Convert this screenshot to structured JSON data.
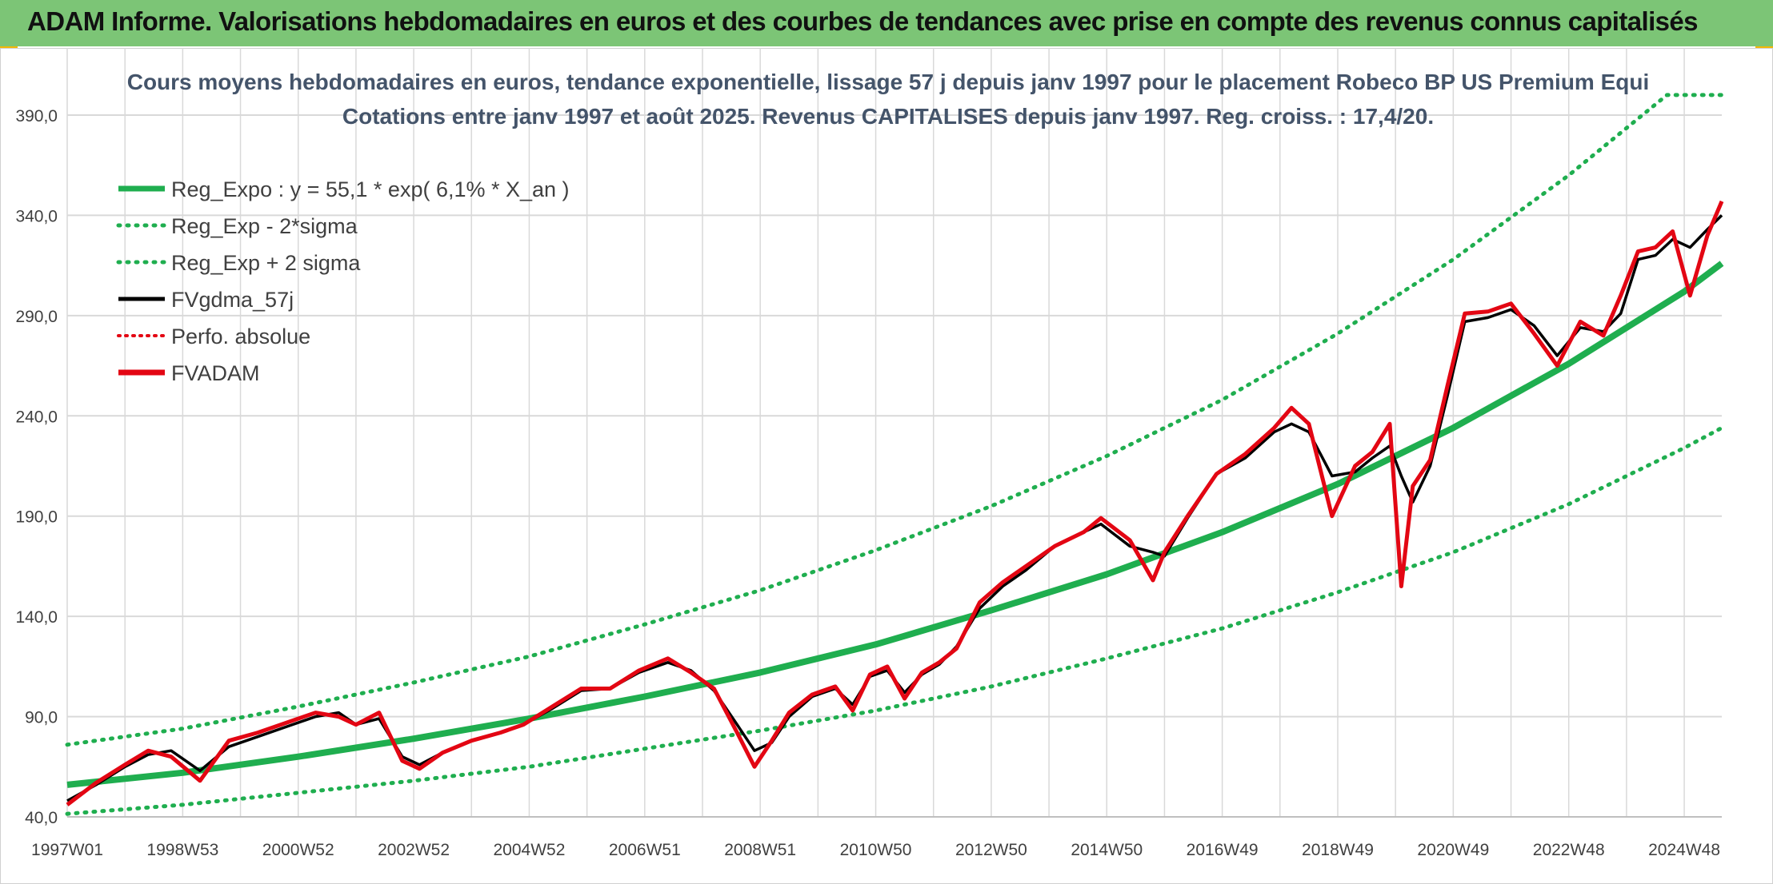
{
  "header": {
    "title": "ADAM Informe. Valorisations hebdomadaires en euros et des courbes de tendances avec prise en compte des revenus connus capitalisés"
  },
  "colors": {
    "banner": "#7cc576",
    "corner_accent": "#f2b705",
    "trend": "#1fae4f",
    "band": "#1fae4f",
    "fvgdma": "#000000",
    "perfo": "#e30613",
    "fvadam": "#e30613",
    "grid": "#d9d9d9",
    "title_text": "#44546a"
  },
  "chart_data": {
    "type": "line",
    "title": "Cours moyens hebdomadaires en euros, tendance exponentielle, lissage 57 j depuis janv 1997 pour le placement Robeco BP US Premium Equi",
    "subtitle": "Cotations entre janv 1997 et août 2025. Revenus CAPITALISES depuis janv 1997. Reg. croiss. : 17,4/20.",
    "xlabel": "",
    "ylabel": "",
    "ylim": [
      40,
      400
    ],
    "yticks": [
      40,
      90,
      140,
      190,
      240,
      290,
      340,
      390
    ],
    "ytick_labels": [
      "40,0",
      "90,0",
      "140,0",
      "190,0",
      "240,0",
      "290,0",
      "340,0",
      "390,0"
    ],
    "xlim": [
      1997.0,
      2025.65
    ],
    "xtick_labels": [
      "1997W01",
      "1998W53",
      "2000W52",
      "2002W52",
      "2004W52",
      "2006W51",
      "2008W51",
      "2010W50",
      "2012W50",
      "2014W50",
      "2016W49",
      "2018W49",
      "2020W49",
      "2022W48",
      "2024W48"
    ],
    "xtick_positions": [
      1997.0,
      1999.0,
      2001.0,
      2003.0,
      2005.0,
      2007.0,
      2009.0,
      2011.0,
      2013.0,
      2015.0,
      2017.0,
      2019.0,
      2021.0,
      2023.0,
      2025.0
    ],
    "grid": true,
    "legend_position": "top-left",
    "legend": [
      {
        "label": "Reg_Expo : y = 55,1 * exp( 6,1% *  X_an )",
        "style": "solid-thick",
        "color": "#1fae4f"
      },
      {
        "label": "Reg_Exp - 2*sigma",
        "style": "dotted",
        "color": "#1fae4f"
      },
      {
        "label": "Reg_Exp + 2 sigma",
        "style": "dotted",
        "color": "#1fae4f"
      },
      {
        "label": "FVgdma_57j",
        "style": "solid",
        "color": "#000000"
      },
      {
        "label": "Perfo. absolue",
        "style": "dotted",
        "color": "#e30613"
      },
      {
        "label": "FVADAM",
        "style": "solid-thick",
        "color": "#e30613"
      }
    ],
    "series": [
      {
        "name": "Reg_Expo : y = 55,1 * exp( 6,1% *  X_an )",
        "x": [
          1997.0,
          1999.0,
          2001.0,
          2003.0,
          2005.0,
          2007.0,
          2009.0,
          2011.0,
          2013.0,
          2015.0,
          2017.0,
          2019.0,
          2021.0,
          2023.0,
          2025.0,
          2025.65
        ],
        "values": [
          56,
          62,
          70,
          79,
          89,
          100,
          112,
          126,
          143,
          161,
          182,
          206,
          234,
          266,
          302,
          316
        ]
      },
      {
        "name": "Reg_Exp - 2*sigma",
        "x": [
          1997.0,
          1999.0,
          2001.0,
          2003.0,
          2005.0,
          2007.0,
          2009.0,
          2011.0,
          2013.0,
          2015.0,
          2017.0,
          2019.0,
          2021.0,
          2023.0,
          2025.0,
          2025.65
        ],
        "values": [
          41.5,
          46,
          52,
          58,
          65,
          74,
          83,
          93,
          105,
          119,
          134,
          152,
          172,
          196,
          224,
          234
        ]
      },
      {
        "name": "Reg_Exp + 2 sigma",
        "x": [
          1997.0,
          1999.0,
          2001.0,
          2003.0,
          2005.0,
          2007.0,
          2009.0,
          2011.0,
          2013.0,
          2015.0,
          2017.0,
          2019.0,
          2021.0,
          2023.0,
          2024.7,
          2025.65
        ],
        "values": [
          76,
          84,
          95,
          107,
          120,
          136,
          153,
          173,
          195,
          220,
          248,
          281,
          318,
          360,
          400,
          400
        ]
      },
      {
        "name": "FVgdma_57j",
        "x": [
          1997.0,
          1997.5,
          1998.0,
          1998.4,
          1998.8,
          1999.3,
          1999.8,
          2000.3,
          2000.8,
          2001.3,
          2001.7,
          2002.0,
          2002.4,
          2002.8,
          2003.1,
          2003.5,
          2004.0,
          2004.5,
          2004.9,
          2005.4,
          2005.9,
          2006.4,
          2006.9,
          2007.4,
          2007.8,
          2008.2,
          2008.6,
          2008.9,
          2009.2,
          2009.5,
          2009.9,
          2010.3,
          2010.6,
          2010.9,
          2011.2,
          2011.5,
          2011.8,
          2012.1,
          2012.4,
          2012.8,
          2013.2,
          2013.6,
          2014.1,
          2014.6,
          2014.9,
          2015.4,
          2015.8,
          2016.0,
          2016.4,
          2016.9,
          2017.4,
          2017.9,
          2018.2,
          2018.5,
          2018.9,
          2019.3,
          2019.6,
          2019.9,
          2020.1,
          2020.3,
          2020.6,
          2020.9,
          2021.2,
          2021.6,
          2022.0,
          2022.4,
          2022.8,
          2023.2,
          2023.6,
          2023.9,
          2024.2,
          2024.5,
          2024.8,
          2025.1,
          2025.4,
          2025.65
        ],
        "values": [
          48,
          56,
          65,
          71,
          73,
          63,
          75,
          80,
          85,
          90,
          92,
          86,
          89,
          70,
          66,
          72,
          78,
          82,
          86,
          94,
          103,
          104,
          112,
          117,
          113,
          103,
          86,
          73,
          77,
          90,
          100,
          104,
          96,
          110,
          113,
          102,
          111,
          116,
          125,
          144,
          155,
          163,
          175,
          182,
          186,
          175,
          172,
          170,
          189,
          211,
          219,
          232,
          236,
          232,
          210,
          212,
          219,
          225,
          210,
          197,
          215,
          250,
          287,
          289,
          293,
          285,
          270,
          284,
          282,
          291,
          318,
          320,
          328,
          324,
          333,
          340
        ]
      },
      {
        "name": "FVADAM",
        "x": [
          1997.0,
          1997.5,
          1998.0,
          1998.4,
          1998.8,
          1999.3,
          1999.8,
          2000.3,
          2000.8,
          2001.3,
          2001.7,
          2002.0,
          2002.4,
          2002.8,
          2003.1,
          2003.5,
          2004.0,
          2004.5,
          2004.9,
          2005.4,
          2005.9,
          2006.4,
          2006.9,
          2007.4,
          2007.8,
          2008.2,
          2008.6,
          2008.9,
          2009.2,
          2009.5,
          2009.9,
          2010.3,
          2010.6,
          2010.9,
          2011.2,
          2011.5,
          2011.8,
          2012.1,
          2012.4,
          2012.8,
          2013.2,
          2013.6,
          2014.1,
          2014.6,
          2014.9,
          2015.4,
          2015.8,
          2016.0,
          2016.4,
          2016.9,
          2017.4,
          2017.9,
          2018.2,
          2018.5,
          2018.9,
          2019.3,
          2019.6,
          2019.9,
          2020.1,
          2020.3,
          2020.6,
          2020.9,
          2021.2,
          2021.6,
          2022.0,
          2022.4,
          2022.8,
          2023.2,
          2023.6,
          2023.9,
          2024.2,
          2024.5,
          2024.8,
          2025.1,
          2025.4,
          2025.65
        ],
        "values": [
          46,
          57,
          66,
          73,
          70,
          58,
          78,
          82,
          87,
          92,
          90,
          86,
          92,
          68,
          64,
          72,
          78,
          82,
          86,
          95,
          104,
          104,
          113,
          119,
          112,
          104,
          82,
          65,
          78,
          92,
          101,
          105,
          93,
          111,
          115,
          99,
          112,
          117,
          124,
          147,
          157,
          165,
          175,
          182,
          189,
          178,
          158,
          172,
          190,
          211,
          221,
          234,
          244,
          236,
          190,
          215,
          222,
          236,
          155,
          205,
          218,
          255,
          291,
          292,
          296,
          281,
          265,
          287,
          280,
          300,
          322,
          324,
          332,
          300,
          330,
          347
        ]
      }
    ]
  }
}
